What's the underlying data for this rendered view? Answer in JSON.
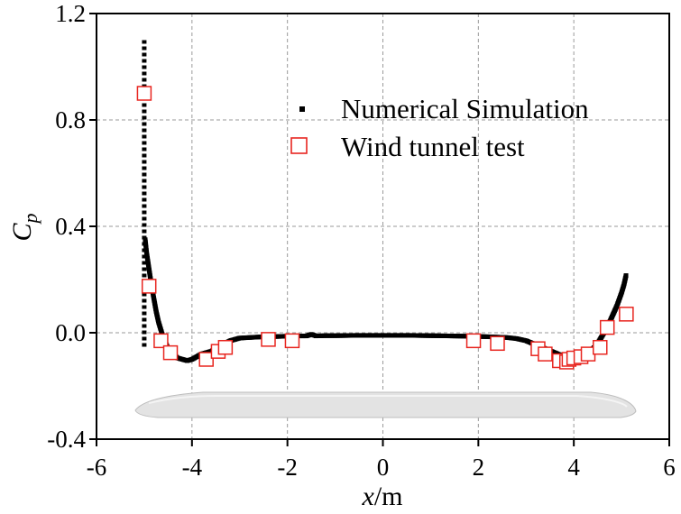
{
  "chart_data": {
    "type": "scatter",
    "title": "",
    "xlabel": "x/m",
    "xlabel_italic": "x",
    "xlabel_unit": "/m",
    "ylabel": "Cp",
    "ylabel_main": "C",
    "ylabel_sub": "p",
    "xlim": [
      -6,
      6
    ],
    "ylim": [
      -0.4,
      1.2
    ],
    "x_ticks": [
      -6,
      -4,
      -2,
      0,
      2,
      4,
      6
    ],
    "x_tick_labels": [
      "-6",
      "-4",
      "-2",
      "0",
      "2",
      "4",
      "6"
    ],
    "y_ticks": [
      -0.4,
      0.0,
      0.4,
      0.8,
      1.2
    ],
    "y_tick_labels": [
      "-0.4",
      "0.0",
      "0.4",
      "0.8",
      "1.2"
    ],
    "grid": true,
    "legend_position": "top-right",
    "series": [
      {
        "name": "Numerical Simulation",
        "marker": "small-square",
        "color": "#000000",
        "vertical_segment": {
          "x": -5.0,
          "y_from": -0.05,
          "y_to": 1.1
        },
        "x": [
          -4.98,
          -4.95,
          -4.9,
          -4.85,
          -4.8,
          -4.75,
          -4.7,
          -4.65,
          -4.6,
          -4.55,
          -4.5,
          -4.4,
          -4.3,
          -4.2,
          -4.1,
          -4.0,
          -3.9,
          -3.8,
          -3.7,
          -3.6,
          -3.5,
          -3.4,
          -3.3,
          -3.2,
          -3.1,
          -3.0,
          -2.8,
          -2.6,
          -2.4,
          -2.2,
          -2.0,
          -1.8,
          -1.6,
          -1.5,
          -1.4,
          -1.2,
          -1.0,
          -0.6,
          -0.2,
          0.2,
          0.6,
          1.0,
          1.4,
          1.8,
          2.2,
          2.6,
          2.8,
          3.0,
          3.2,
          3.4,
          3.6,
          3.8,
          4.0,
          4.1,
          4.2,
          4.3,
          4.4,
          4.5,
          4.6,
          4.7,
          4.8,
          4.9,
          5.0,
          5.05,
          5.1
        ],
        "y": [
          0.35,
          0.3,
          0.24,
          0.18,
          0.13,
          0.08,
          0.04,
          0.01,
          -0.02,
          -0.04,
          -0.06,
          -0.08,
          -0.095,
          -0.1,
          -0.105,
          -0.1,
          -0.09,
          -0.08,
          -0.075,
          -0.07,
          -0.06,
          -0.05,
          -0.04,
          -0.03,
          -0.025,
          -0.02,
          -0.018,
          -0.016,
          -0.015,
          -0.014,
          -0.013,
          -0.012,
          -0.012,
          -0.006,
          -0.012,
          -0.011,
          -0.011,
          -0.01,
          -0.01,
          -0.01,
          -0.01,
          -0.011,
          -0.012,
          -0.013,
          -0.015,
          -0.018,
          -0.022,
          -0.03,
          -0.045,
          -0.06,
          -0.075,
          -0.09,
          -0.095,
          -0.09,
          -0.085,
          -0.075,
          -0.06,
          -0.04,
          -0.01,
          0.02,
          0.06,
          0.1,
          0.15,
          0.18,
          0.22
        ]
      },
      {
        "name": "Wind tunnel test",
        "marker": "open-square",
        "color": "#e8251f",
        "x": [
          -5.0,
          -4.9,
          -4.65,
          -4.45,
          -3.7,
          -3.45,
          -3.3,
          -2.4,
          -1.9,
          1.9,
          2.4,
          3.25,
          3.4,
          3.7,
          3.85,
          3.9,
          4.0,
          4.15,
          4.3,
          4.55,
          4.7,
          5.1
        ],
        "y": [
          0.9,
          0.175,
          -0.03,
          -0.075,
          -0.1,
          -0.07,
          -0.055,
          -0.025,
          -0.03,
          -0.03,
          -0.04,
          -0.06,
          -0.08,
          -0.105,
          -0.11,
          -0.1,
          -0.095,
          -0.09,
          -0.08,
          -0.055,
          0.02,
          0.07
        ]
      }
    ]
  },
  "style": {
    "sim_color": "#000000",
    "test_color": "#e8251f",
    "grid_color": "#9a9a9a",
    "silhouette_fill": "#e3e3e3",
    "silhouette_stroke": "#bdbdbd"
  }
}
